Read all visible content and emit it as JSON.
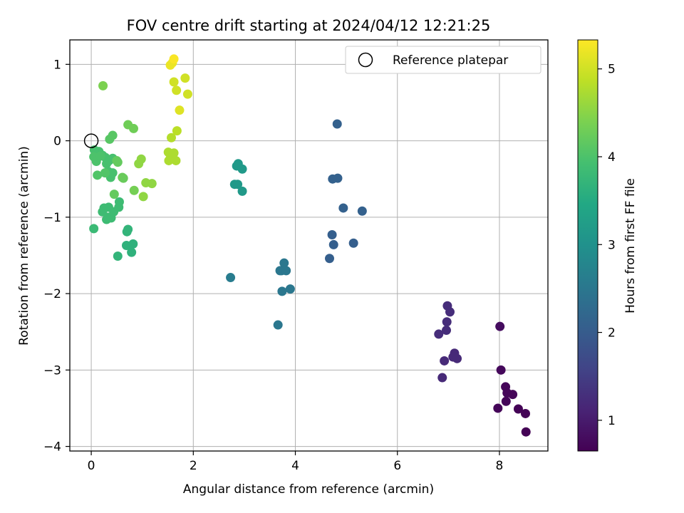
{
  "chart_data": {
    "type": "scatter",
    "title": "FOV centre drift starting at 2024/04/12 12:21:25",
    "xlabel": "Angular distance from reference (arcmin)",
    "ylabel": "Rotation from reference (arcmin)",
    "xlim": [
      -0.42,
      8.95
    ],
    "ylim": [
      -4.06,
      1.32
    ],
    "xticks": [
      {
        "v": 0,
        "label": "0"
      },
      {
        "v": 2,
        "label": "2"
      },
      {
        "v": 4,
        "label": "4"
      },
      {
        "v": 6,
        "label": "6"
      },
      {
        "v": 8,
        "label": "8"
      }
    ],
    "yticks": [
      {
        "v": 1,
        "label": "1"
      },
      {
        "v": 0,
        "label": "0"
      },
      {
        "v": -1,
        "label": "−1"
      },
      {
        "v": -2,
        "label": "−2"
      },
      {
        "v": -3,
        "label": "−3"
      },
      {
        "v": -4,
        "label": "−4"
      }
    ],
    "grid": true,
    "legend": {
      "position": "top-right",
      "label": "Reference platepar"
    },
    "reference_point": {
      "x": 0,
      "y": 0
    },
    "colorbar": {
      "label": "Hours from first FF file",
      "colormap": "viridis",
      "range": [
        0.65,
        5.33
      ],
      "ticks": [
        {
          "v": 1,
          "label": "1"
        },
        {
          "v": 2,
          "label": "2"
        },
        {
          "v": 3,
          "label": "3"
        },
        {
          "v": 4,
          "label": "4"
        },
        {
          "v": 5,
          "label": "5"
        }
      ]
    },
    "points": [
      {
        "x": 8.01,
        "y": -2.43,
        "c": 0.8
      },
      {
        "x": 8.03,
        "y": -3.0,
        "c": 0.75
      },
      {
        "x": 8.12,
        "y": -3.22,
        "c": 0.72
      },
      {
        "x": 8.15,
        "y": -3.3,
        "c": 0.72
      },
      {
        "x": 8.26,
        "y": -3.32,
        "c": 0.72
      },
      {
        "x": 8.13,
        "y": -3.41,
        "c": 0.7
      },
      {
        "x": 7.97,
        "y": -3.5,
        "c": 0.7
      },
      {
        "x": 8.37,
        "y": -3.51,
        "c": 0.68
      },
      {
        "x": 8.51,
        "y": -3.57,
        "c": 0.68
      },
      {
        "x": 8.52,
        "y": -3.81,
        "c": 0.66
      },
      {
        "x": 6.98,
        "y": -2.16,
        "c": 1.25
      },
      {
        "x": 7.03,
        "y": -2.24,
        "c": 1.25
      },
      {
        "x": 6.97,
        "y": -2.37,
        "c": 1.25
      },
      {
        "x": 6.96,
        "y": -2.48,
        "c": 1.25
      },
      {
        "x": 6.81,
        "y": -2.53,
        "c": 1.25
      },
      {
        "x": 7.12,
        "y": -2.78,
        "c": 1.2
      },
      {
        "x": 7.09,
        "y": -2.83,
        "c": 1.2
      },
      {
        "x": 7.17,
        "y": -2.85,
        "c": 1.2
      },
      {
        "x": 6.92,
        "y": -2.88,
        "c": 1.2
      },
      {
        "x": 6.88,
        "y": -3.1,
        "c": 1.2
      },
      {
        "x": 4.82,
        "y": 0.22,
        "c": 2.1
      },
      {
        "x": 4.73,
        "y": -0.5,
        "c": 2.1
      },
      {
        "x": 4.83,
        "y": -0.49,
        "c": 2.1
      },
      {
        "x": 4.94,
        "y": -0.88,
        "c": 2.1
      },
      {
        "x": 5.31,
        "y": -0.92,
        "c": 2.1
      },
      {
        "x": 4.72,
        "y": -1.23,
        "c": 2.05
      },
      {
        "x": 5.14,
        "y": -1.34,
        "c": 2.05
      },
      {
        "x": 4.75,
        "y": -1.36,
        "c": 2.05
      },
      {
        "x": 4.67,
        "y": -1.54,
        "c": 2.05
      },
      {
        "x": 3.78,
        "y": -1.6,
        "c": 2.5
      },
      {
        "x": 3.7,
        "y": -1.7,
        "c": 2.5
      },
      {
        "x": 3.73,
        "y": -1.7,
        "c": 2.5
      },
      {
        "x": 3.82,
        "y": -1.7,
        "c": 2.5
      },
      {
        "x": 3.9,
        "y": -1.94,
        "c": 2.5
      },
      {
        "x": 3.74,
        "y": -1.97,
        "c": 2.5
      },
      {
        "x": 3.66,
        "y": -2.41,
        "c": 2.5
      },
      {
        "x": 2.73,
        "y": -1.79,
        "c": 2.6
      },
      {
        "x": 2.88,
        "y": -0.3,
        "c": 3.15
      },
      {
        "x": 2.85,
        "y": -0.33,
        "c": 3.15
      },
      {
        "x": 2.96,
        "y": -0.37,
        "c": 3.15
      },
      {
        "x": 2.81,
        "y": -0.57,
        "c": 3.15
      },
      {
        "x": 2.87,
        "y": -0.57,
        "c": 3.15
      },
      {
        "x": 2.96,
        "y": -0.66,
        "c": 3.15
      },
      {
        "x": 0.69,
        "y": -1.37,
        "c": 3.65
      },
      {
        "x": 0.82,
        "y": -1.35,
        "c": 3.65
      },
      {
        "x": 0.79,
        "y": -1.46,
        "c": 3.65
      },
      {
        "x": 0.52,
        "y": -1.51,
        "c": 3.7
      },
      {
        "x": 0.72,
        "y": -1.16,
        "c": 3.7
      },
      {
        "x": 0.7,
        "y": -1.19,
        "c": 3.7
      },
      {
        "x": 0.05,
        "y": -1.15,
        "c": 3.8
      },
      {
        "x": 0.3,
        "y": -1.03,
        "c": 3.85
      },
      {
        "x": 0.39,
        "y": -1.01,
        "c": 3.85
      },
      {
        "x": 0.33,
        "y": -1.0,
        "c": 3.85
      },
      {
        "x": 0.22,
        "y": -0.93,
        "c": 3.85
      },
      {
        "x": 0.25,
        "y": -0.88,
        "c": 3.85
      },
      {
        "x": 0.34,
        "y": -0.87,
        "c": 3.85
      },
      {
        "x": 0.44,
        "y": -0.93,
        "c": 3.85
      },
      {
        "x": 0.54,
        "y": -0.87,
        "c": 3.85
      },
      {
        "x": 0.55,
        "y": -0.8,
        "c": 3.85
      },
      {
        "x": 0.38,
        "y": -0.48,
        "c": 3.95
      },
      {
        "x": 0.33,
        "y": -0.4,
        "c": 3.95
      },
      {
        "x": 0.42,
        "y": -0.42,
        "c": 3.95
      },
      {
        "x": 0.3,
        "y": -0.3,
        "c": 3.95
      },
      {
        "x": 0.42,
        "y": -0.23,
        "c": 3.95
      },
      {
        "x": 0.35,
        "y": -0.26,
        "c": 3.95
      },
      {
        "x": 0.28,
        "y": -0.22,
        "c": 3.95
      },
      {
        "x": 0.22,
        "y": -0.19,
        "c": 3.95
      },
      {
        "x": 0.15,
        "y": -0.14,
        "c": 3.95
      },
      {
        "x": 0.06,
        "y": -0.12,
        "c": 3.95
      },
      {
        "x": 0.1,
        "y": -0.27,
        "c": 4.0
      },
      {
        "x": 0.05,
        "y": -0.21,
        "c": 4.0
      },
      {
        "x": 0.18,
        "y": -0.2,
        "c": 4.0
      },
      {
        "x": 0.12,
        "y": -0.45,
        "c": 4.05
      },
      {
        "x": 0.27,
        "y": -0.42,
        "c": 4.05
      },
      {
        "x": 0.36,
        "y": 0.02,
        "c": 4.1
      },
      {
        "x": 0.42,
        "y": 0.07,
        "c": 4.1
      },
      {
        "x": 0.5,
        "y": -0.26,
        "c": 4.2
      },
      {
        "x": 0.52,
        "y": -0.28,
        "c": 4.2
      },
      {
        "x": 0.45,
        "y": -0.7,
        "c": 4.2
      },
      {
        "x": 0.61,
        "y": -0.48,
        "c": 4.25
      },
      {
        "x": 0.63,
        "y": -0.49,
        "c": 4.25
      },
      {
        "x": 0.72,
        "y": 0.21,
        "c": 4.3
      },
      {
        "x": 0.83,
        "y": 0.16,
        "c": 4.3
      },
      {
        "x": 0.84,
        "y": -0.65,
        "c": 4.35
      },
      {
        "x": 0.23,
        "y": 0.72,
        "c": 4.4
      },
      {
        "x": 0.93,
        "y": -0.3,
        "c": 4.55
      },
      {
        "x": 0.98,
        "y": -0.24,
        "c": 4.55
      },
      {
        "x": 1.07,
        "y": -0.55,
        "c": 4.55
      },
      {
        "x": 1.19,
        "y": -0.56,
        "c": 4.55
      },
      {
        "x": 1.02,
        "y": -0.73,
        "c": 4.55
      },
      {
        "x": 1.51,
        "y": -0.15,
        "c": 4.75
      },
      {
        "x": 1.62,
        "y": -0.16,
        "c": 4.75
      },
      {
        "x": 1.55,
        "y": -0.23,
        "c": 4.75
      },
      {
        "x": 1.52,
        "y": -0.26,
        "c": 4.75
      },
      {
        "x": 1.66,
        "y": -0.26,
        "c": 4.75
      },
      {
        "x": 1.57,
        "y": 0.04,
        "c": 4.8
      },
      {
        "x": 1.68,
        "y": 0.13,
        "c": 4.85
      },
      {
        "x": 1.62,
        "y": 0.77,
        "c": 5.0
      },
      {
        "x": 1.84,
        "y": 0.82,
        "c": 5.0
      },
      {
        "x": 1.67,
        "y": 0.66,
        "c": 5.0
      },
      {
        "x": 1.89,
        "y": 0.61,
        "c": 5.0
      },
      {
        "x": 1.73,
        "y": 0.4,
        "c": 5.1
      },
      {
        "x": 1.55,
        "y": 0.99,
        "c": 5.2
      },
      {
        "x": 1.59,
        "y": 1.02,
        "c": 5.2
      },
      {
        "x": 1.62,
        "y": 1.07,
        "c": 5.3
      }
    ]
  }
}
